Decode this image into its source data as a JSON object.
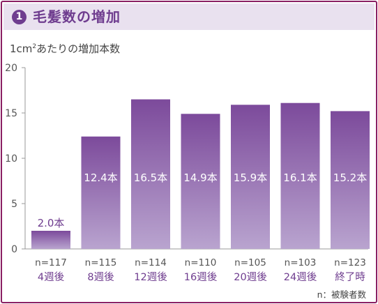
{
  "header": {
    "number": "1",
    "title": "毛髪数の増加"
  },
  "unit_label_before": "1cm",
  "unit_label_sup": "2",
  "unit_label_after": "あたりの増加本数",
  "note": "n：被験者数",
  "colors": {
    "frame": "#8a1f63",
    "header_bg": "#e9e1ef",
    "accent": "#6f3d8f",
    "bar_top": "#7c4a9b",
    "bar_bottom": "#b9a4cf",
    "value_label_dark": "#6f3d8f"
  },
  "chart_data": {
    "type": "bar",
    "categories": [
      "4週後",
      "8週後",
      "12週後",
      "16週後",
      "20週後",
      "24週後",
      "終了時"
    ],
    "sample_sizes": [
      "n=117",
      "n=115",
      "n=114",
      "n=110",
      "n=105",
      "n=103",
      "n=123"
    ],
    "values": [
      2.0,
      12.4,
      16.5,
      14.9,
      15.9,
      16.1,
      15.2
    ],
    "value_labels": [
      "2.0本",
      "12.4本",
      "16.5本",
      "14.9本",
      "15.9本",
      "16.1本",
      "15.2本"
    ],
    "ylim": [
      0,
      20
    ],
    "yticks": [
      "0",
      "5",
      "10",
      "15",
      "20"
    ],
    "grid": false
  }
}
